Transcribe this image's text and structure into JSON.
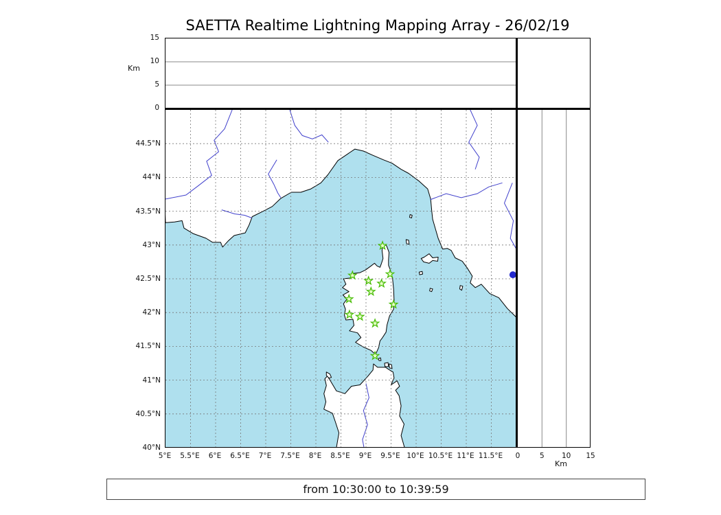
{
  "title": "SAETTA Realtime Lightning Mapping Array - 26/02/19",
  "status_bar": "from 10:30:00 to 10:39:59",
  "colors": {
    "sea": "#afe0ee",
    "land": "#ffffff",
    "coastline": "#000000",
    "river": "#4040cc",
    "grid": "#777777",
    "panel_refline": "#888888",
    "station_stroke": "#44bb00",
    "station_fill": "#e8ffc8",
    "source_dot": "#2228cc"
  },
  "alt_lon_panel": {
    "axis_label": "Km",
    "range_km": [
      0,
      15
    ],
    "reflines": [
      5,
      10
    ],
    "ticks": [
      {
        "label": "0",
        "value": 0
      },
      {
        "label": "5",
        "value": 5
      },
      {
        "label": "10",
        "value": 10
      },
      {
        "label": "15",
        "value": 15
      }
    ]
  },
  "alt_lat_panel": {
    "axis_label": "Km",
    "range_km": [
      0,
      15
    ],
    "reflines": [
      5,
      10
    ],
    "ticks": [
      {
        "label": "0",
        "value": 0
      },
      {
        "label": "5",
        "value": 5
      },
      {
        "label": "10",
        "value": 10
      },
      {
        "label": "15",
        "value": 15
      }
    ]
  },
  "map_panel": {
    "lon_range": [
      5,
      12
    ],
    "lat_range": [
      40,
      45
    ],
    "grid_step_deg": 0.5,
    "lon_ticks": [
      {
        "label": "5°E",
        "value": 5
      },
      {
        "label": "5.5°E",
        "value": 5.5
      },
      {
        "label": "6°E",
        "value": 6
      },
      {
        "label": "6.5°E",
        "value": 6.5
      },
      {
        "label": "7°E",
        "value": 7
      },
      {
        "label": "7.5°E",
        "value": 7.5
      },
      {
        "label": "8°E",
        "value": 8
      },
      {
        "label": "8.5°E",
        "value": 8.5
      },
      {
        "label": "9°E",
        "value": 9
      },
      {
        "label": "9.5°E",
        "value": 9.5
      },
      {
        "label": "10°E",
        "value": 10
      },
      {
        "label": "10.5°E",
        "value": 10.5
      },
      {
        "label": "11°E",
        "value": 11
      },
      {
        "label": "11.5°E",
        "value": 11.5
      }
    ],
    "lat_ticks": [
      {
        "label": "44.5°N",
        "value": 44.5
      },
      {
        "label": "44°N",
        "value": 44
      },
      {
        "label": "43.5°N",
        "value": 43.5
      },
      {
        "label": "43°N",
        "value": 43
      },
      {
        "label": "42.5°N",
        "value": 42.5
      },
      {
        "label": "42°N",
        "value": 42
      },
      {
        "label": "41.5°N",
        "value": 41.5
      },
      {
        "label": "41°N",
        "value": 41
      },
      {
        "label": "40.5°N",
        "value": 40.5
      },
      {
        "label": "40°N",
        "value": 40
      }
    ]
  },
  "chart_data": {
    "type": "scatter",
    "title": "SAETTA Realtime Lightning Mapping Array - 26/02/19",
    "time_window": "from 10:30:00 to 10:39:59",
    "map": {
      "lon_range": [
        5,
        12
      ],
      "lat_range": [
        40,
        45
      ],
      "stations_lonlat": [
        [
          9.33,
          42.99
        ],
        [
          8.73,
          42.55
        ],
        [
          9.05,
          42.47
        ],
        [
          9.48,
          42.57
        ],
        [
          9.31,
          42.43
        ],
        [
          9.1,
          42.31
        ],
        [
          8.66,
          42.2
        ],
        [
          9.55,
          42.12
        ],
        [
          8.67,
          41.97
        ],
        [
          8.88,
          41.94
        ],
        [
          9.18,
          41.84
        ],
        [
          9.18,
          41.36
        ]
      ],
      "sources_lonlat": [
        [
          11.93,
          42.56
        ]
      ]
    },
    "altitude_km_range": [
      0,
      15
    ]
  },
  "geography": {
    "mainland": [
      [
        5.0,
        43.33
      ],
      [
        5.18,
        43.34
      ],
      [
        5.33,
        43.36
      ],
      [
        5.37,
        43.25
      ],
      [
        5.55,
        43.17
      ],
      [
        5.81,
        43.1
      ],
      [
        5.94,
        43.04
      ],
      [
        6.1,
        43.04
      ],
      [
        6.14,
        42.97
      ],
      [
        6.25,
        43.06
      ],
      [
        6.37,
        43.14
      ],
      [
        6.59,
        43.18
      ],
      [
        6.67,
        43.3
      ],
      [
        6.73,
        43.42
      ],
      [
        6.95,
        43.5
      ],
      [
        7.13,
        43.57
      ],
      [
        7.3,
        43.69
      ],
      [
        7.51,
        43.78
      ],
      [
        7.7,
        43.78
      ],
      [
        7.9,
        43.83
      ],
      [
        8.1,
        43.92
      ],
      [
        8.24,
        44.04
      ],
      [
        8.44,
        44.25
      ],
      [
        8.62,
        44.34
      ],
      [
        8.78,
        44.42
      ],
      [
        8.95,
        44.39
      ],
      [
        9.13,
        44.33
      ],
      [
        9.35,
        44.26
      ],
      [
        9.52,
        44.21
      ],
      [
        9.7,
        44.12
      ],
      [
        9.85,
        44.06
      ],
      [
        10.05,
        43.95
      ],
      [
        10.23,
        43.83
      ],
      [
        10.29,
        43.68
      ],
      [
        10.31,
        43.52
      ],
      [
        10.33,
        43.38
      ],
      [
        10.44,
        43.1
      ],
      [
        10.53,
        42.94
      ],
      [
        10.62,
        42.95
      ],
      [
        10.7,
        42.92
      ],
      [
        10.78,
        42.81
      ],
      [
        10.92,
        42.76
      ],
      [
        11.02,
        42.66
      ],
      [
        11.12,
        42.54
      ],
      [
        11.08,
        42.44
      ],
      [
        11.18,
        42.37
      ],
      [
        11.3,
        42.42
      ],
      [
        11.47,
        42.28
      ],
      [
        11.65,
        42.22
      ],
      [
        11.82,
        42.06
      ],
      [
        12.0,
        41.93
      ]
    ],
    "corsica": [
      [
        9.34,
        43.01
      ],
      [
        9.41,
        42.99
      ],
      [
        9.46,
        42.89
      ],
      [
        9.45,
        42.78
      ],
      [
        9.45,
        42.7
      ],
      [
        9.49,
        42.62
      ],
      [
        9.53,
        42.5
      ],
      [
        9.55,
        42.35
      ],
      [
        9.56,
        42.18
      ],
      [
        9.55,
        42.05
      ],
      [
        9.47,
        41.95
      ],
      [
        9.42,
        41.82
      ],
      [
        9.4,
        41.71
      ],
      [
        9.32,
        41.62
      ],
      [
        9.28,
        41.58
      ],
      [
        9.25,
        41.48
      ],
      [
        9.19,
        41.38
      ],
      [
        9.1,
        41.44
      ],
      [
        8.95,
        41.49
      ],
      [
        8.79,
        41.56
      ],
      [
        8.9,
        41.63
      ],
      [
        8.83,
        41.7
      ],
      [
        8.67,
        41.73
      ],
      [
        8.76,
        41.81
      ],
      [
        8.74,
        41.9
      ],
      [
        8.6,
        41.89
      ],
      [
        8.57,
        41.96
      ],
      [
        8.59,
        42.05
      ],
      [
        8.55,
        42.13
      ],
      [
        8.62,
        42.2
      ],
      [
        8.54,
        42.26
      ],
      [
        8.66,
        42.31
      ],
      [
        8.53,
        42.37
      ],
      [
        8.6,
        42.42
      ],
      [
        8.55,
        42.5
      ],
      [
        8.68,
        42.51
      ],
      [
        8.76,
        42.58
      ],
      [
        8.88,
        42.59
      ],
      [
        8.99,
        42.63
      ],
      [
        9.1,
        42.69
      ],
      [
        9.17,
        42.73
      ],
      [
        9.22,
        42.69
      ],
      [
        9.28,
        42.67
      ],
      [
        9.31,
        42.73
      ],
      [
        9.34,
        42.8
      ],
      [
        9.32,
        42.92
      ]
    ],
    "sardinia": [
      [
        8.41,
        40.0
      ],
      [
        8.46,
        40.22
      ],
      [
        8.39,
        40.38
      ],
      [
        8.33,
        40.51
      ],
      [
        8.16,
        40.57
      ],
      [
        8.2,
        40.68
      ],
      [
        8.16,
        40.8
      ],
      [
        8.21,
        40.92
      ],
      [
        8.18,
        41.02
      ],
      [
        8.23,
        41.06
      ],
      [
        8.29,
        40.99
      ],
      [
        8.41,
        40.84
      ],
      [
        8.58,
        40.8
      ],
      [
        8.71,
        40.91
      ],
      [
        8.88,
        40.93
      ],
      [
        9.04,
        41.06
      ],
      [
        9.14,
        41.15
      ],
      [
        9.15,
        41.24
      ],
      [
        9.23,
        41.19
      ],
      [
        9.31,
        41.19
      ],
      [
        9.39,
        41.19
      ],
      [
        9.47,
        41.15
      ],
      [
        9.54,
        41.12
      ],
      [
        9.56,
        41.03
      ],
      [
        9.5,
        40.93
      ],
      [
        9.62,
        40.99
      ],
      [
        9.67,
        40.91
      ],
      [
        9.59,
        40.85
      ],
      [
        9.66,
        40.77
      ],
      [
        9.7,
        40.62
      ],
      [
        9.67,
        40.47
      ],
      [
        9.76,
        40.35
      ],
      [
        9.7,
        40.18
      ],
      [
        9.77,
        40.0
      ]
    ],
    "islands": {
      "elba": [
        [
          10.1,
          42.8
        ],
        [
          10.15,
          42.75
        ],
        [
          10.26,
          42.73
        ],
        [
          10.33,
          42.77
        ],
        [
          10.43,
          42.76
        ],
        [
          10.44,
          42.82
        ],
        [
          10.33,
          42.81
        ],
        [
          10.26,
          42.87
        ],
        [
          10.16,
          42.82
        ]
      ],
      "capraia": [
        [
          9.8,
          43.08
        ],
        [
          9.85,
          43.07
        ],
        [
          9.86,
          43.01
        ],
        [
          9.81,
          43.02
        ]
      ],
      "gorgona": [
        [
          9.88,
          43.45
        ],
        [
          9.92,
          43.44
        ],
        [
          9.91,
          43.4
        ],
        [
          9.87,
          43.41
        ]
      ],
      "pianosa": [
        [
          10.06,
          42.6
        ],
        [
          10.12,
          42.61
        ],
        [
          10.13,
          42.57
        ],
        [
          10.07,
          42.56
        ]
      ],
      "montecristo": [
        [
          10.28,
          42.36
        ],
        [
          10.33,
          42.35
        ],
        [
          10.31,
          42.31
        ],
        [
          10.27,
          42.32
        ]
      ],
      "giglio": [
        [
          10.88,
          42.4
        ],
        [
          10.93,
          42.39
        ],
        [
          10.91,
          42.33
        ],
        [
          10.87,
          42.35
        ]
      ],
      "asinara": [
        [
          8.21,
          41.12
        ],
        [
          8.28,
          41.09
        ],
        [
          8.31,
          41.04
        ],
        [
          8.26,
          41.03
        ],
        [
          8.21,
          41.07
        ]
      ],
      "maddalena": [
        [
          9.37,
          41.25
        ],
        [
          9.44,
          41.26
        ],
        [
          9.45,
          41.2
        ],
        [
          9.38,
          41.2
        ]
      ],
      "caprera": [
        [
          9.46,
          41.24
        ],
        [
          9.51,
          41.23
        ],
        [
          9.52,
          41.17
        ],
        [
          9.47,
          41.18
        ]
      ],
      "lavezzi": [
        [
          9.25,
          41.32
        ],
        [
          9.29,
          41.33
        ],
        [
          9.3,
          41.29
        ],
        [
          9.26,
          41.29
        ]
      ]
    },
    "rivers": {
      "durance": [
        [
          6.33,
          45.0
        ],
        [
          6.18,
          44.72
        ],
        [
          5.97,
          44.55
        ],
        [
          6.06,
          44.38
        ],
        [
          5.82,
          44.24
        ],
        [
          5.92,
          44.03
        ],
        [
          5.66,
          43.88
        ],
        [
          5.41,
          43.74
        ],
        [
          5.0,
          43.68
        ]
      ],
      "var": [
        [
          7.22,
          44.26
        ],
        [
          7.05,
          44.05
        ],
        [
          7.16,
          43.9
        ],
        [
          7.24,
          43.77
        ],
        [
          7.3,
          43.7
        ]
      ],
      "stura": [
        [
          7.48,
          45.0
        ],
        [
          7.58,
          44.77
        ],
        [
          7.73,
          44.62
        ],
        [
          7.93,
          44.57
        ],
        [
          8.12,
          44.63
        ],
        [
          8.25,
          44.52
        ]
      ],
      "argens": [
        [
          6.12,
          43.52
        ],
        [
          6.38,
          43.46
        ],
        [
          6.58,
          43.44
        ],
        [
          6.72,
          43.4
        ]
      ],
      "reno": [
        [
          11.08,
          45.0
        ],
        [
          11.22,
          44.77
        ],
        [
          11.05,
          44.52
        ],
        [
          11.26,
          44.3
        ],
        [
          11.18,
          44.12
        ]
      ],
      "arno": [
        [
          11.72,
          43.92
        ],
        [
          11.45,
          43.86
        ],
        [
          11.22,
          43.76
        ],
        [
          10.9,
          43.7
        ],
        [
          10.6,
          43.76
        ],
        [
          10.35,
          43.69
        ],
        [
          10.28,
          43.67
        ]
      ],
      "tiber": [
        [
          11.92,
          43.92
        ],
        [
          11.76,
          43.62
        ],
        [
          11.94,
          43.36
        ],
        [
          11.88,
          43.1
        ],
        [
          12.0,
          42.94
        ]
      ],
      "tirso": [
        [
          9.0,
          40.95
        ],
        [
          9.06,
          40.74
        ],
        [
          8.95,
          40.55
        ],
        [
          9.03,
          40.34
        ],
        [
          8.93,
          40.12
        ],
        [
          8.96,
          40.0
        ]
      ]
    }
  }
}
